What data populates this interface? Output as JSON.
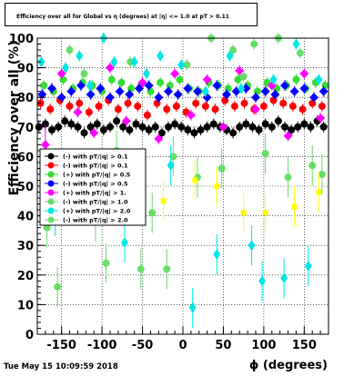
{
  "plot_title": "Efficiency over all for Global vs η (degrees) at |η| <= 1.0 at pT > 0.11",
  "timestamp": "Tue May 15 10:09:59 2018",
  "colors": {
    "black": "#000000",
    "red": "#ff0000",
    "green": "#33dd33",
    "blue": "#0000ff",
    "magenta": "#ff00ff",
    "lightgreen": "#66dd66",
    "cyan": "#00e6e6"
  },
  "legend": [
    {
      "label": "(-) with pT/|q| > 0.1",
      "color": "#000000"
    },
    {
      "label": "(-) with pT/|q| > 0.1",
      "color": "#ff0000"
    },
    {
      "label": "(+) with pT/|q| > 0.5",
      "color": "#33dd33"
    },
    {
      "label": "(-) with pT/|q| > 0.5",
      "color": "#0000ff"
    },
    {
      "label": "(+) with pT/|q| > 1.",
      "color": "#ff00ff"
    },
    {
      "label": "(-) with pT/|q| > 1.0",
      "color": "#66dd66"
    },
    {
      "label": "(+) with pT/|q| > 2.0",
      "color": "#00e6e6"
    },
    {
      "label": "(-) with pT/|q| > 2.0",
      "color": "#66dd66"
    }
  ],
  "chart_data": {
    "type": "scatter",
    "xlabel": "ϕ (degrees)",
    "ylabel": "Efficiency over all (%)",
    "xlim": [
      -180,
      180
    ],
    "ylim": [
      0,
      100
    ],
    "x_ticks": [
      -150,
      -100,
      -50,
      0,
      50,
      100,
      150
    ],
    "y_ticks": [
      0,
      10,
      20,
      30,
      40,
      50,
      60,
      70,
      80,
      90,
      100
    ],
    "grid": true,
    "series": [
      {
        "color": "#000000",
        "x": [
          -178,
          -170,
          -162,
          -154,
          -146,
          -138,
          -130,
          -122,
          -114,
          -106,
          -98,
          -90,
          -82,
          -74,
          -66,
          -58,
          -50,
          -42,
          -34,
          -26,
          -18,
          -10,
          -2,
          6,
          14,
          22,
          30,
          38,
          46,
          54,
          62,
          70,
          78,
          86,
          94,
          102,
          110,
          118,
          126,
          134,
          142,
          150,
          158,
          166,
          174
        ],
        "y": [
          70,
          71,
          69,
          70,
          72,
          71,
          70,
          68,
          70,
          71,
          69,
          70,
          72,
          70,
          69,
          71,
          70,
          69,
          70,
          68,
          70,
          71,
          70,
          69,
          68,
          69,
          70,
          71,
          70,
          69,
          68,
          70,
          71,
          70,
          69,
          71,
          70,
          72,
          70,
          69,
          70,
          71,
          70,
          72,
          70
        ]
      },
      {
        "color": "#ff0000",
        "x": [
          -176,
          -164,
          -152,
          -140,
          -128,
          -116,
          -104,
          -92,
          -80,
          -68,
          -56,
          -44,
          -32,
          -20,
          -8,
          4,
          16,
          28,
          40,
          52,
          64,
          76,
          88,
          100,
          112,
          124,
          136,
          148,
          160,
          172
        ],
        "y": [
          78,
          76,
          79,
          77,
          78,
          75,
          77,
          79,
          76,
          78,
          77,
          74,
          78,
          76,
          77,
          75,
          78,
          77,
          76,
          79,
          77,
          78,
          76,
          77,
          79,
          78,
          77,
          76,
          78,
          77
        ]
      },
      {
        "color": "#33dd33",
        "x": [
          -172,
          -160,
          -148,
          -136,
          -124,
          -112,
          -100,
          -88,
          -76,
          -64,
          -52,
          -40,
          -28,
          -16,
          -4,
          8,
          20,
          32,
          44,
          56,
          68,
          80,
          92,
          104,
          116,
          128,
          140,
          152,
          164,
          176
        ],
        "y": [
          84,
          82,
          86,
          83,
          85,
          84,
          82,
          86,
          85,
          83,
          84,
          82,
          85,
          84,
          86,
          83,
          82,
          85,
          84,
          83,
          86,
          84,
          82,
          85,
          83,
          84,
          86,
          83,
          85,
          84
        ]
      },
      {
        "color": "#0000ff",
        "x": [
          -174,
          -162,
          -150,
          -138,
          -126,
          -114,
          -102,
          -90,
          -78,
          -66,
          -54,
          -42,
          -30,
          -18,
          -6,
          6,
          18,
          30,
          42,
          54,
          66,
          78,
          90,
          102,
          114,
          126,
          138,
          150,
          162,
          174
        ],
        "y": [
          81,
          83,
          80,
          82,
          84,
          81,
          83,
          80,
          82,
          81,
          83,
          84,
          80,
          82,
          81,
          83,
          82,
          80,
          84,
          81,
          82,
          83,
          80,
          82,
          81,
          84,
          82,
          83,
          80,
          82
        ]
      },
      {
        "color": "#ff00ff",
        "x": [
          -170,
          -150,
          -130,
          -110,
          -90,
          -70,
          -50,
          -30,
          -10,
          10,
          30,
          50,
          70,
          90,
          110,
          130,
          150,
          170
        ],
        "y": [
          64,
          88,
          75,
          68,
          90,
          72,
          85,
          66,
          88,
          74,
          86,
          70,
          89,
          76,
          84,
          67,
          88,
          73
        ]
      },
      {
        "color": "#66dd66",
        "x": [
          -168,
          -155,
          -140,
          -122,
          -108,
          -95,
          -82,
          -65,
          -52,
          -38,
          -20,
          -12,
          5,
          18,
          35,
          48,
          62,
          75,
          88,
          102,
          118,
          130,
          145,
          160,
          172
        ],
        "y": [
          36,
          16,
          96,
          88,
          38,
          24,
          62,
          92,
          22,
          41,
          22,
          60,
          91,
          53,
          100,
          56,
          96,
          87,
          98,
          61,
          100,
          53,
          95,
          57,
          54
        ]
      },
      {
        "color": "#00e6e6",
        "x": [
          -175,
          -158,
          -145,
          -128,
          -115,
          -98,
          -85,
          -72,
          -60,
          -45,
          -28,
          -15,
          -2,
          12,
          28,
          42,
          58,
          72,
          85,
          98,
          112,
          125,
          140,
          155,
          168
        ],
        "y": [
          92,
          40,
          90,
          94,
          84,
          100,
          92,
          31,
          92,
          88,
          94,
          57,
          91,
          9,
          82,
          27,
          94,
          83,
          30,
          18,
          86,
          19,
          98,
          23,
          86
        ]
      },
      {
        "color": "#ffff00",
        "x": [
          -24,
          15,
          42,
          75,
          102,
          138,
          168
        ],
        "y": [
          45,
          52,
          50,
          41,
          41,
          43,
          48
        ]
      }
    ]
  }
}
